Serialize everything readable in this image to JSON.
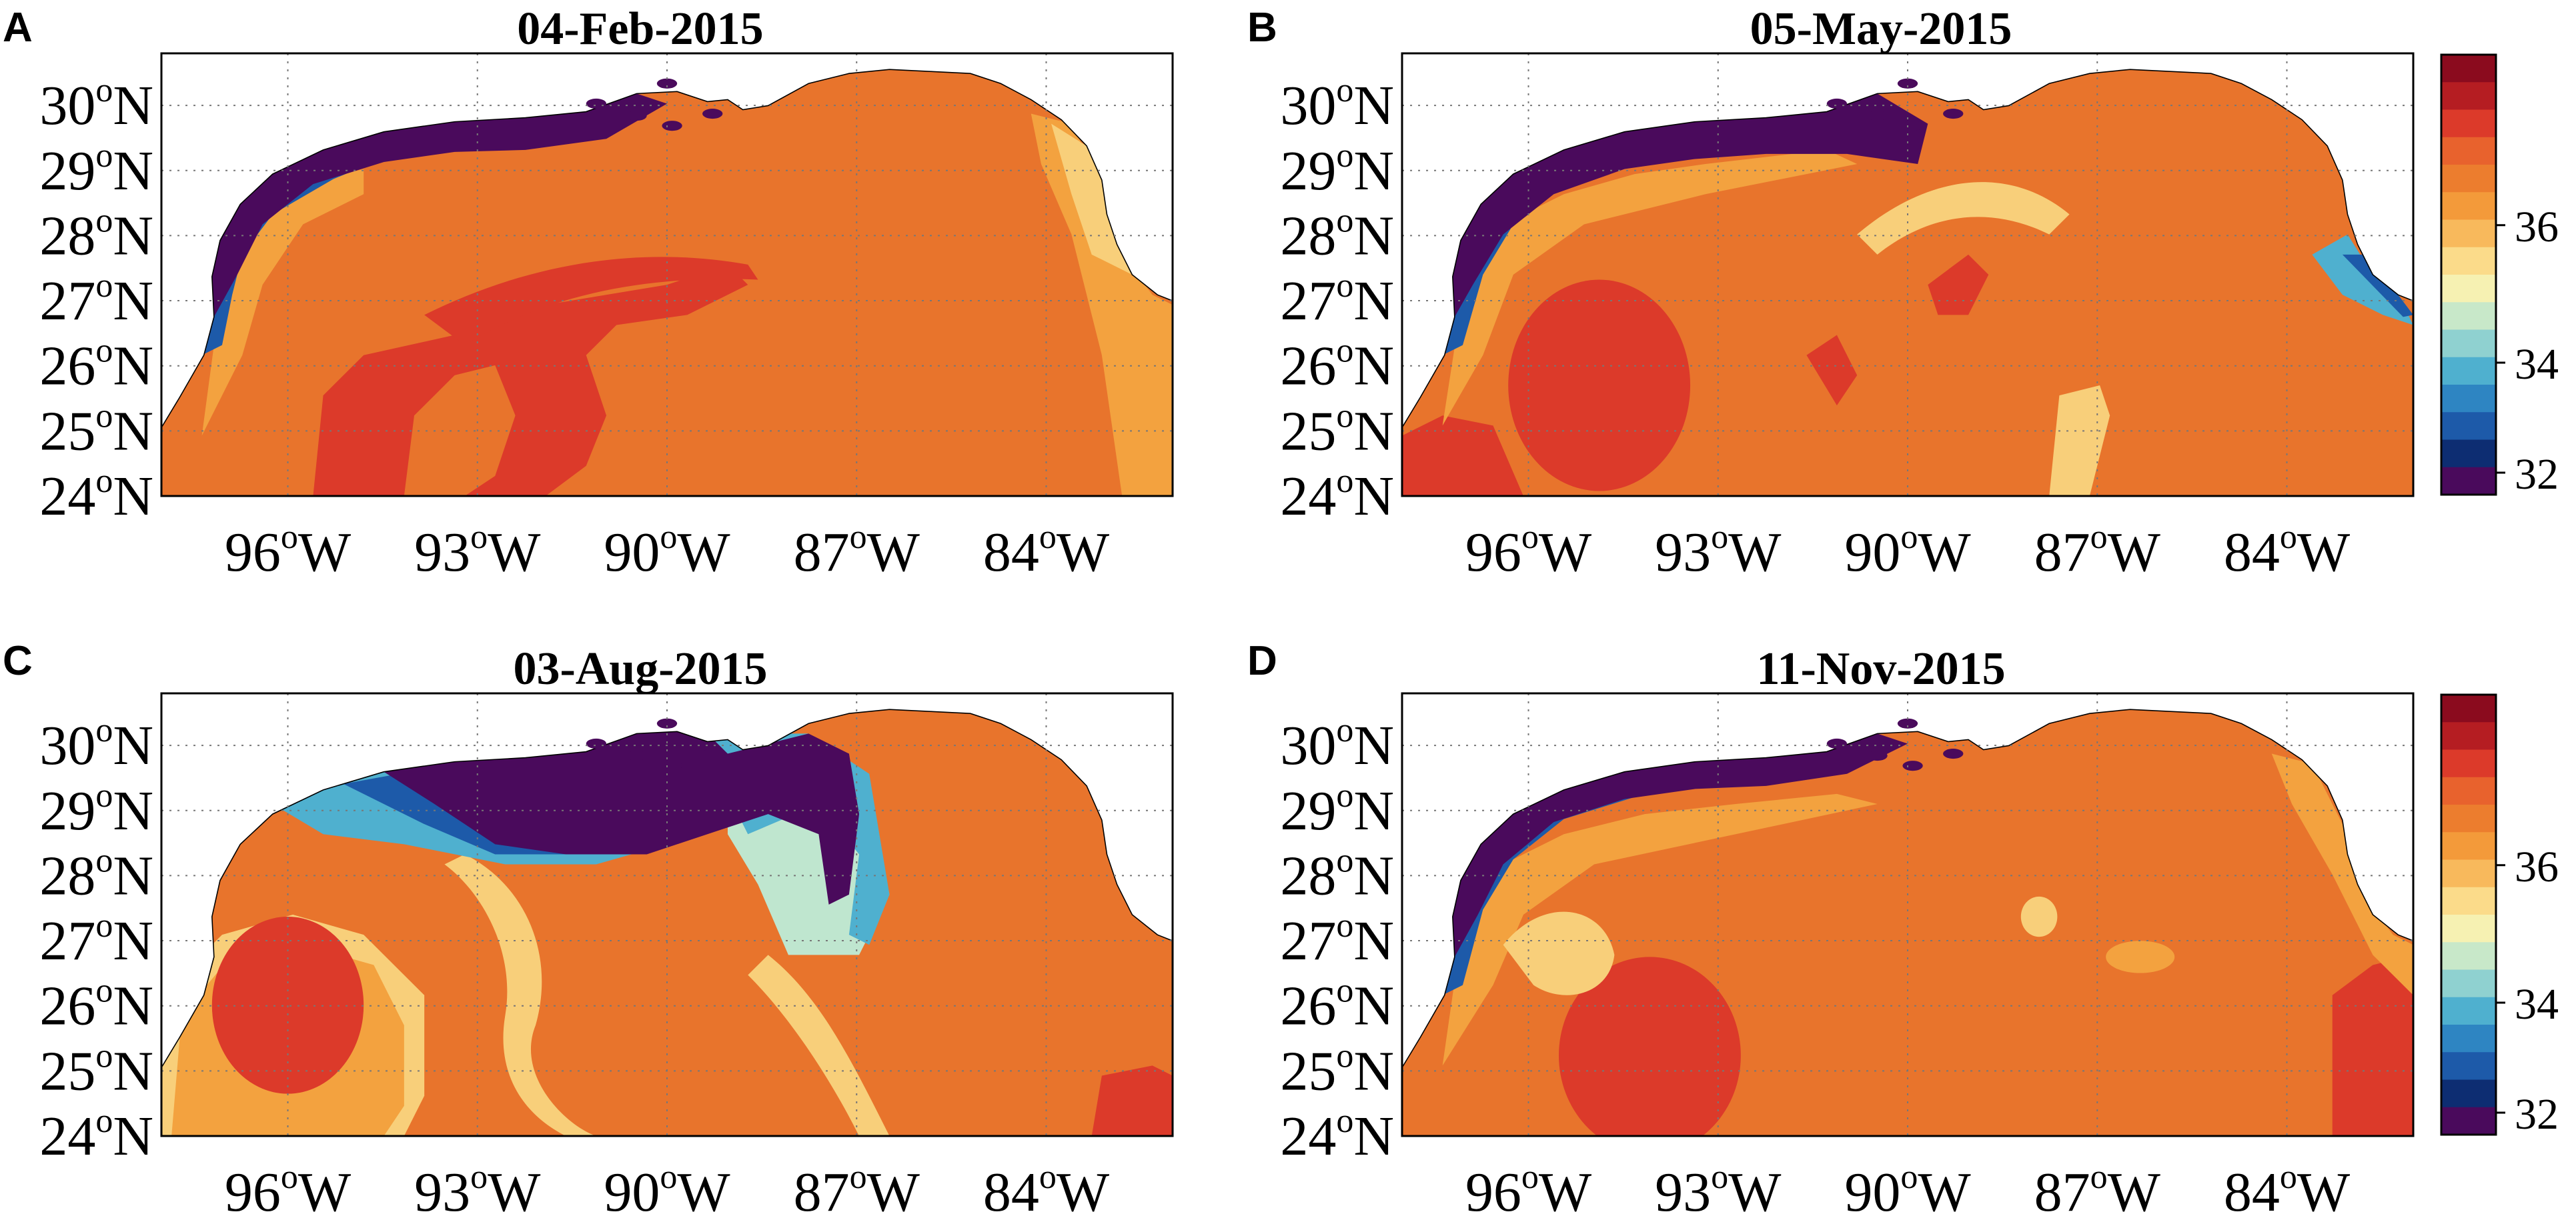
{
  "panels": [
    {
      "letter": "A",
      "date": "04-Feb-2015"
    },
    {
      "letter": "B",
      "date": "05-May-2015"
    },
    {
      "letter": "C",
      "date": "03-Aug-2015"
    },
    {
      "letter": "D",
      "date": "11-Nov-2015"
    }
  ],
  "axes": {
    "lat_ticks": [
      "30",
      "29",
      "28",
      "27",
      "26",
      "25",
      "24"
    ],
    "lat_suffix": "N",
    "lon_ticks": [
      "96",
      "93",
      "90",
      "87",
      "84"
    ],
    "lon_suffix": "W",
    "degree_mark": "o"
  },
  "colorbar": {
    "labels": [
      "36",
      "34",
      "32"
    ],
    "colors": [
      "#8b0b1e",
      "#b51d22",
      "#dc3a2a",
      "#e8622d",
      "#ec7d2e",
      "#f39a3a",
      "#f8b95c",
      "#fbdb8a",
      "#f6f1b2",
      "#c8e8c9",
      "#8fd1d0",
      "#4fb0cf",
      "#2e85c2",
      "#1d5aa9",
      "#0d2d72",
      "#4a0a5c"
    ]
  },
  "map_colors": {
    "open_gulf": "#e8742c",
    "warm_core": "#dc3a2a",
    "shelf_light": "#f3a23f",
    "pale": "#f8cf7a",
    "plume_dark": "#4a0a5c",
    "plume_mid": "#1d5aa9",
    "plume_light": "#4fb0cf",
    "plume_pale": "#bfe6cf",
    "land": "#ffffff"
  }
}
